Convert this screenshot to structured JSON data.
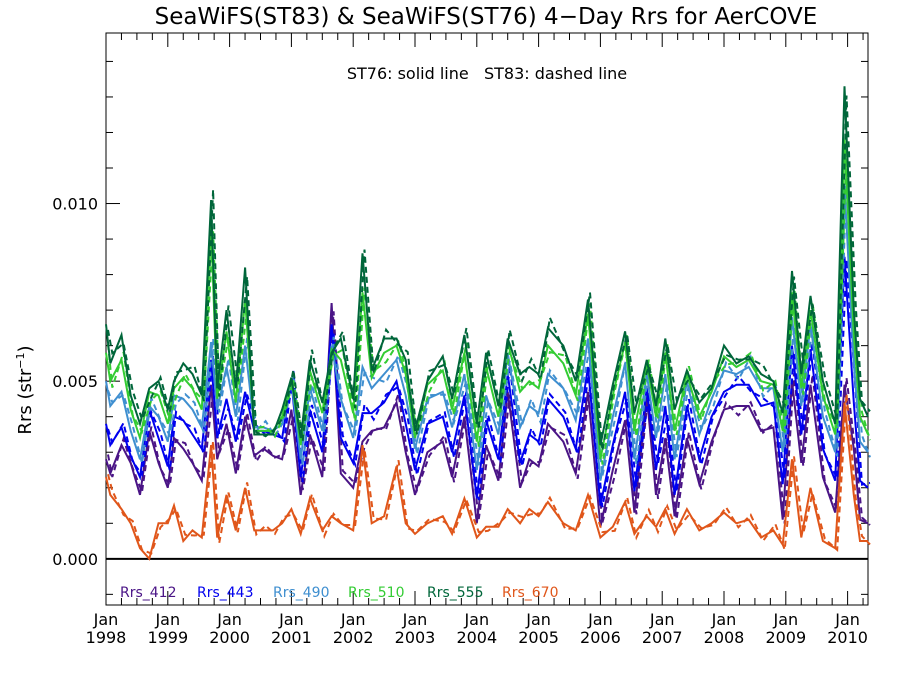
{
  "chart_data": {
    "type": "line",
    "title": "SeaWiFS(ST83) & SeaWiFS(ST76) 4−Day Rrs for AerCOVE",
    "annotation": "ST76: solid line   ST83: dashed line",
    "ylabel": "Rrs (str",
    "ylabel_sup": "−1",
    "ylabel_close": ")",
    "ylim": [
      -0.0013,
      0.0148
    ],
    "xlim": [
      1998.0,
      2010.33
    ],
    "zero_line": true,
    "grid": false,
    "legend": "bottom-left",
    "yticks": [
      {
        "value": 0.0,
        "label": "0.000"
      },
      {
        "value": 0.005,
        "label": "0.005"
      },
      {
        "value": 0.01,
        "label": "0.010"
      }
    ],
    "xticks": [
      {
        "value": 1998,
        "month": "Jan",
        "year": "1998"
      },
      {
        "value": 1999,
        "month": "Jan",
        "year": "1999"
      },
      {
        "value": 2000,
        "month": "Jan",
        "year": "2000"
      },
      {
        "value": 2001,
        "month": "Jan",
        "year": "2001"
      },
      {
        "value": 2002,
        "month": "Jan",
        "year": "2002"
      },
      {
        "value": 2003,
        "month": "Jan",
        "year": "2003"
      },
      {
        "value": 2004,
        "month": "Jan",
        "year": "2004"
      },
      {
        "value": 2005,
        "month": "Jan",
        "year": "2005"
      },
      {
        "value": 2006,
        "month": "Jan",
        "year": "2006"
      },
      {
        "value": 2007,
        "month": "Jan",
        "year": "2007"
      },
      {
        "value": 2008,
        "month": "Jan",
        "year": "2008"
      },
      {
        "value": 2009,
        "month": "Jan",
        "year": "2009"
      },
      {
        "value": 2010,
        "month": "Jan",
        "year": "2010"
      }
    ],
    "x": [
      1998.0,
      1998.07,
      1998.25,
      1998.4,
      1998.55,
      1998.7,
      1998.85,
      1999.0,
      1999.1,
      1999.25,
      1999.4,
      1999.55,
      1999.7,
      1999.8,
      1999.95,
      2000.1,
      2000.25,
      2000.4,
      2000.55,
      2000.7,
      2000.85,
      2001.0,
      2001.15,
      2001.3,
      2001.5,
      2001.65,
      2001.8,
      2002.0,
      2002.15,
      2002.3,
      2002.5,
      2002.7,
      2002.85,
      2003.0,
      2003.2,
      2003.45,
      2003.6,
      2003.8,
      2004.0,
      2004.15,
      2004.35,
      2004.5,
      2004.7,
      2004.85,
      2005.0,
      2005.15,
      2005.4,
      2005.6,
      2005.8,
      2006.0,
      2006.2,
      2006.4,
      2006.55,
      2006.75,
      2006.9,
      2007.05,
      2007.2,
      2007.4,
      2007.6,
      2007.8,
      2008.0,
      2008.2,
      2008.4,
      2008.6,
      2008.8,
      2008.95,
      2009.1,
      2009.25,
      2009.4,
      2009.6,
      2009.8,
      2009.95,
      2010.1,
      2010.2,
      2010.33
    ],
    "series": [
      {
        "name": "Rrs_412",
        "color": "#4a1486",
        "values": [
          0.0028,
          0.0024,
          0.0032,
          0.0027,
          0.0018,
          0.0036,
          0.0027,
          0.002,
          0.0034,
          0.0031,
          0.0027,
          0.0022,
          0.0049,
          0.0028,
          0.0038,
          0.0024,
          0.004,
          0.0029,
          0.0031,
          0.0029,
          0.0028,
          0.0042,
          0.0018,
          0.0035,
          0.0023,
          0.0072,
          0.0024,
          0.002,
          0.0033,
          0.0036,
          0.0037,
          0.0044,
          0.003,
          0.0018,
          0.003,
          0.0033,
          0.0023,
          0.004,
          0.001,
          0.0032,
          0.0022,
          0.0047,
          0.002,
          0.0028,
          0.0026,
          0.0038,
          0.0033,
          0.0024,
          0.0047,
          0.0009,
          0.0025,
          0.0039,
          0.0013,
          0.0046,
          0.0018,
          0.0034,
          0.0012,
          0.0034,
          0.0021,
          0.0033,
          0.0042,
          0.0043,
          0.0043,
          0.0036,
          0.0037,
          0.0011,
          0.005,
          0.0027,
          0.0049,
          0.0023,
          0.0013,
          0.0049,
          0.0031,
          0.0011,
          0.001
        ]
      },
      {
        "name": "Rrs_443",
        "color": "#0000ee",
        "values": [
          0.0038,
          0.0032,
          0.0037,
          0.0029,
          0.0023,
          0.0042,
          0.0034,
          0.0026,
          0.004,
          0.0039,
          0.0035,
          0.0031,
          0.0056,
          0.0034,
          0.0045,
          0.0033,
          0.0047,
          0.0036,
          0.0036,
          0.0035,
          0.0034,
          0.005,
          0.0023,
          0.0042,
          0.003,
          0.0066,
          0.0034,
          0.0027,
          0.0041,
          0.0041,
          0.0044,
          0.005,
          0.0038,
          0.0025,
          0.0038,
          0.004,
          0.003,
          0.0046,
          0.0017,
          0.0039,
          0.0028,
          0.0052,
          0.0027,
          0.0035,
          0.0033,
          0.0045,
          0.004,
          0.0031,
          0.0054,
          0.0015,
          0.0032,
          0.0047,
          0.0019,
          0.0048,
          0.0025,
          0.0043,
          0.0018,
          0.0043,
          0.0028,
          0.004,
          0.0047,
          0.0049,
          0.0049,
          0.0043,
          0.0044,
          0.0021,
          0.006,
          0.0035,
          0.0059,
          0.0031,
          0.0022,
          0.0085,
          0.0044,
          0.0022,
          0.002
        ]
      },
      {
        "name": "Rrs_490",
        "color": "#3f8fd0",
        "values": [
          0.005,
          0.0043,
          0.0047,
          0.0036,
          0.0028,
          0.0043,
          0.004,
          0.0033,
          0.0046,
          0.0045,
          0.0042,
          0.0037,
          0.0061,
          0.0042,
          0.0054,
          0.004,
          0.006,
          0.0037,
          0.0037,
          0.0036,
          0.0038,
          0.005,
          0.0028,
          0.0048,
          0.0036,
          0.006,
          0.0045,
          0.0034,
          0.0054,
          0.0048,
          0.0052,
          0.0056,
          0.0046,
          0.0031,
          0.0045,
          0.0047,
          0.0037,
          0.0052,
          0.0025,
          0.0046,
          0.0035,
          0.0058,
          0.0037,
          0.0043,
          0.0041,
          0.0052,
          0.0048,
          0.0039,
          0.0062,
          0.0022,
          0.004,
          0.0055,
          0.0028,
          0.0052,
          0.0034,
          0.0052,
          0.0028,
          0.005,
          0.0035,
          0.0045,
          0.0053,
          0.0052,
          0.0054,
          0.0048,
          0.0048,
          0.003,
          0.0068,
          0.0043,
          0.0066,
          0.004,
          0.003,
          0.0105,
          0.0055,
          0.0033,
          0.003
        ]
      },
      {
        "name": "Rrs_510",
        "color": "#33cc33",
        "values": [
          0.0058,
          0.005,
          0.0056,
          0.0042,
          0.0034,
          0.0047,
          0.0046,
          0.0038,
          0.0048,
          0.0051,
          0.0048,
          0.0042,
          0.0094,
          0.0045,
          0.0064,
          0.0044,
          0.0073,
          0.0036,
          0.0036,
          0.0036,
          0.004,
          0.0051,
          0.0032,
          0.0053,
          0.0041,
          0.0059,
          0.0056,
          0.0041,
          0.0075,
          0.0051,
          0.0058,
          0.006,
          0.0052,
          0.0034,
          0.0049,
          0.0053,
          0.0042,
          0.0058,
          0.0033,
          0.0054,
          0.004,
          0.0061,
          0.0047,
          0.005,
          0.0048,
          0.006,
          0.0055,
          0.0046,
          0.0069,
          0.0028,
          0.0046,
          0.0061,
          0.0036,
          0.0055,
          0.004,
          0.0058,
          0.0036,
          0.0052,
          0.004,
          0.0047,
          0.0057,
          0.0054,
          0.0056,
          0.005,
          0.0049,
          0.0036,
          0.0075,
          0.0048,
          0.007,
          0.0046,
          0.0035,
          0.0118,
          0.0063,
          0.004,
          0.0035
        ]
      },
      {
        "name": "Rrs_555",
        "color": "#00663a",
        "values": [
          0.0066,
          0.0055,
          0.0063,
          0.0046,
          0.0038,
          0.0048,
          0.005,
          0.0042,
          0.005,
          0.0055,
          0.0052,
          0.0046,
          0.0101,
          0.0048,
          0.007,
          0.0048,
          0.0082,
          0.0035,
          0.0035,
          0.0035,
          0.0042,
          0.0051,
          0.0034,
          0.0056,
          0.0044,
          0.0058,
          0.0062,
          0.0045,
          0.0086,
          0.0053,
          0.0062,
          0.0062,
          0.0056,
          0.0036,
          0.005,
          0.0057,
          0.0045,
          0.0063,
          0.0038,
          0.0058,
          0.0043,
          0.0062,
          0.0052,
          0.0054,
          0.0052,
          0.0065,
          0.006,
          0.005,
          0.0073,
          0.0032,
          0.0049,
          0.0064,
          0.0041,
          0.0056,
          0.0043,
          0.0062,
          0.0042,
          0.0053,
          0.0044,
          0.0048,
          0.006,
          0.0055,
          0.0057,
          0.0052,
          0.005,
          0.0041,
          0.0081,
          0.0052,
          0.0074,
          0.005,
          0.0038,
          0.0133,
          0.007,
          0.0045,
          0.004
        ]
      },
      {
        "name": "Rrs_670",
        "color": "#e0561a",
        "values": [
          0.0023,
          0.0018,
          0.0014,
          0.001,
          0.0003,
          0.0,
          0.001,
          0.001,
          0.0015,
          0.0005,
          0.0008,
          0.0006,
          0.0032,
          0.0006,
          0.0018,
          0.0008,
          0.002,
          0.0008,
          0.0008,
          0.0008,
          0.001,
          0.0014,
          0.0007,
          0.0017,
          0.0008,
          0.0012,
          0.001,
          0.0008,
          0.0032,
          0.001,
          0.0012,
          0.0026,
          0.001,
          0.0007,
          0.001,
          0.0012,
          0.0007,
          0.0017,
          0.0006,
          0.0009,
          0.0009,
          0.0014,
          0.001,
          0.0014,
          0.0012,
          0.0016,
          0.001,
          0.0008,
          0.0018,
          0.0006,
          0.0009,
          0.0016,
          0.0007,
          0.0012,
          0.0009,
          0.0014,
          0.0007,
          0.0014,
          0.0008,
          0.001,
          0.0013,
          0.001,
          0.0011,
          0.0006,
          0.0008,
          0.0004,
          0.0028,
          0.0006,
          0.002,
          0.0005,
          0.0003,
          0.0044,
          0.0018,
          0.0005,
          0.0005
        ]
      }
    ]
  }
}
